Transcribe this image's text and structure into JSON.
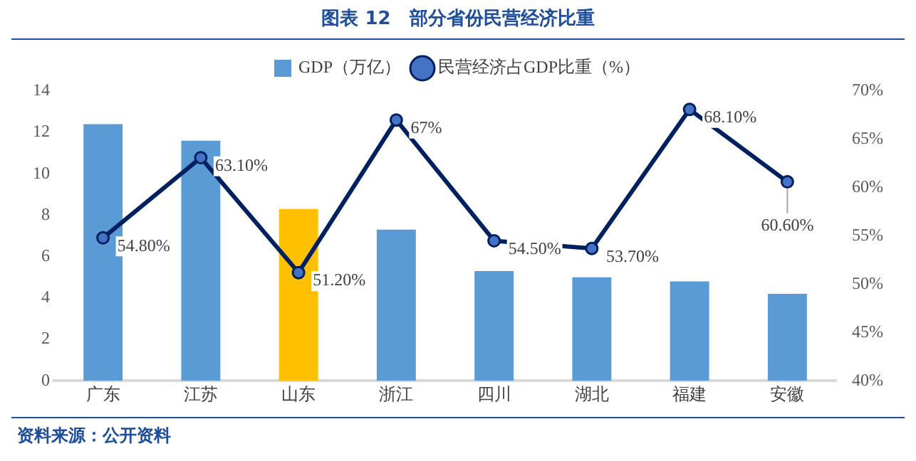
{
  "chart_data": {
    "type": "bar",
    "title": "图表 12　部分省份民营经济比重",
    "annotations": [
      "资料来源：公开资料"
    ],
    "categories": [
      "广东",
      "江苏",
      "山东",
      "浙江",
      "四川",
      "湖北",
      "福建",
      "安徽"
    ],
    "series": [
      {
        "name": "GDP（万亿）",
        "color": "#5b9bd5",
        "colors": [
          "#5b9bd5",
          "#5b9bd5",
          "#ffc000",
          "#5b9bd5",
          "#5b9bd5",
          "#5b9bd5",
          "#5b9bd5",
          "#5b9bd5"
        ],
        "values": [
          12.4,
          11.6,
          8.3,
          7.3,
          5.3,
          5.0,
          4.8,
          4.2
        ]
      },
      {
        "name": "民营经济占GDP比重（%）",
        "type": "line",
        "axis": "y2",
        "color": "#002060",
        "values": [
          54.8,
          63.1,
          51.2,
          67,
          54.5,
          53.7,
          68.1,
          60.6
        ],
        "value_labels": [
          "54.80%",
          "63.10%",
          "51.20%",
          "67%",
          "54.50%",
          "53.70%",
          "68.10%",
          "60.60%"
        ]
      }
    ],
    "ylim": [
      0,
      14
    ],
    "yticks": [
      0,
      2,
      4,
      6,
      8,
      10,
      12,
      14
    ],
    "y2lim": [
      40,
      70
    ],
    "y2ticks": [
      {
        "value": 40,
        "label": "40%"
      },
      {
        "value": 45,
        "label": "45%"
      },
      {
        "value": 50,
        "label": "50%"
      },
      {
        "value": 55,
        "label": "55%"
      },
      {
        "value": 60,
        "label": "60%"
      },
      {
        "value": 65,
        "label": "65%"
      },
      {
        "value": 70,
        "label": "70%"
      }
    ],
    "marker": "circle",
    "legend": "top",
    "grid": false
  }
}
